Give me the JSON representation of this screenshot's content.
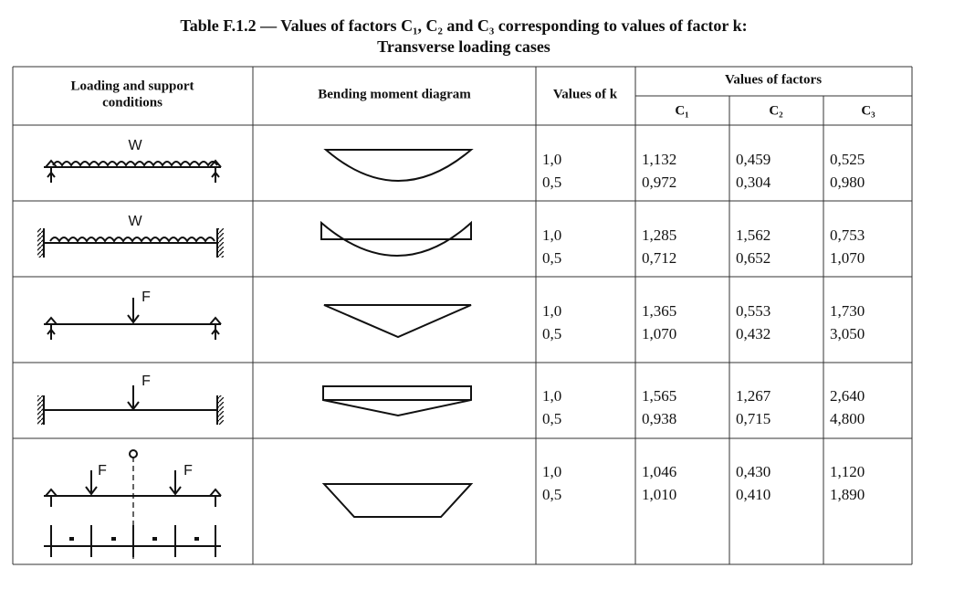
{
  "header": {
    "title": [
      "Table F.1.2 — Values of factors C₁, C₂ and C₃ corresponding to values of factor k:",
      "Transverse loading cases"
    ]
  },
  "table": {
    "columns": {
      "loading": [
        "Loading and support",
        "conditions"
      ],
      "diagram": "Bending moment diagram",
      "k": "Values of k",
      "factors": "Values of factors",
      "c1": "C₁",
      "c2": "C₂",
      "c3": "C₃"
    },
    "rows": [
      {
        "load_labels": [
          "W"
        ],
        "k": [
          "1,0",
          "0,5"
        ],
        "c1": [
          "1,132",
          "0,972"
        ],
        "c2": [
          "0,459",
          "0,304"
        ],
        "c3": [
          "0,525",
          "0,980"
        ]
      },
      {
        "load_labels": [
          "W"
        ],
        "k": [
          "1,0",
          "0,5"
        ],
        "c1": [
          "1,285",
          "0,712"
        ],
        "c2": [
          "1,562",
          "0,652"
        ],
        "c3": [
          "0,753",
          "1,070"
        ]
      },
      {
        "load_labels": [
          "F"
        ],
        "k": [
          "1,0",
          "0,5"
        ],
        "c1": [
          "1,365",
          "1,070"
        ],
        "c2": [
          "0,553",
          "0,432"
        ],
        "c3": [
          "1,730",
          "3,050"
        ]
      },
      {
        "load_labels": [
          "F"
        ],
        "k": [
          "1,0",
          "0,5"
        ],
        "c1": [
          "1,565",
          "0,938"
        ],
        "c2": [
          "1,267",
          "0,715"
        ],
        "c3": [
          "2,640",
          "4,800"
        ]
      },
      {
        "load_labels": [
          "F",
          "F"
        ],
        "k": [
          "1,0",
          "0,5"
        ],
        "c1": [
          "1,046",
          "1,010"
        ],
        "c2": [
          "0,430",
          "0,410"
        ],
        "c3": [
          "1,120",
          "1,890"
        ]
      }
    ]
  }
}
